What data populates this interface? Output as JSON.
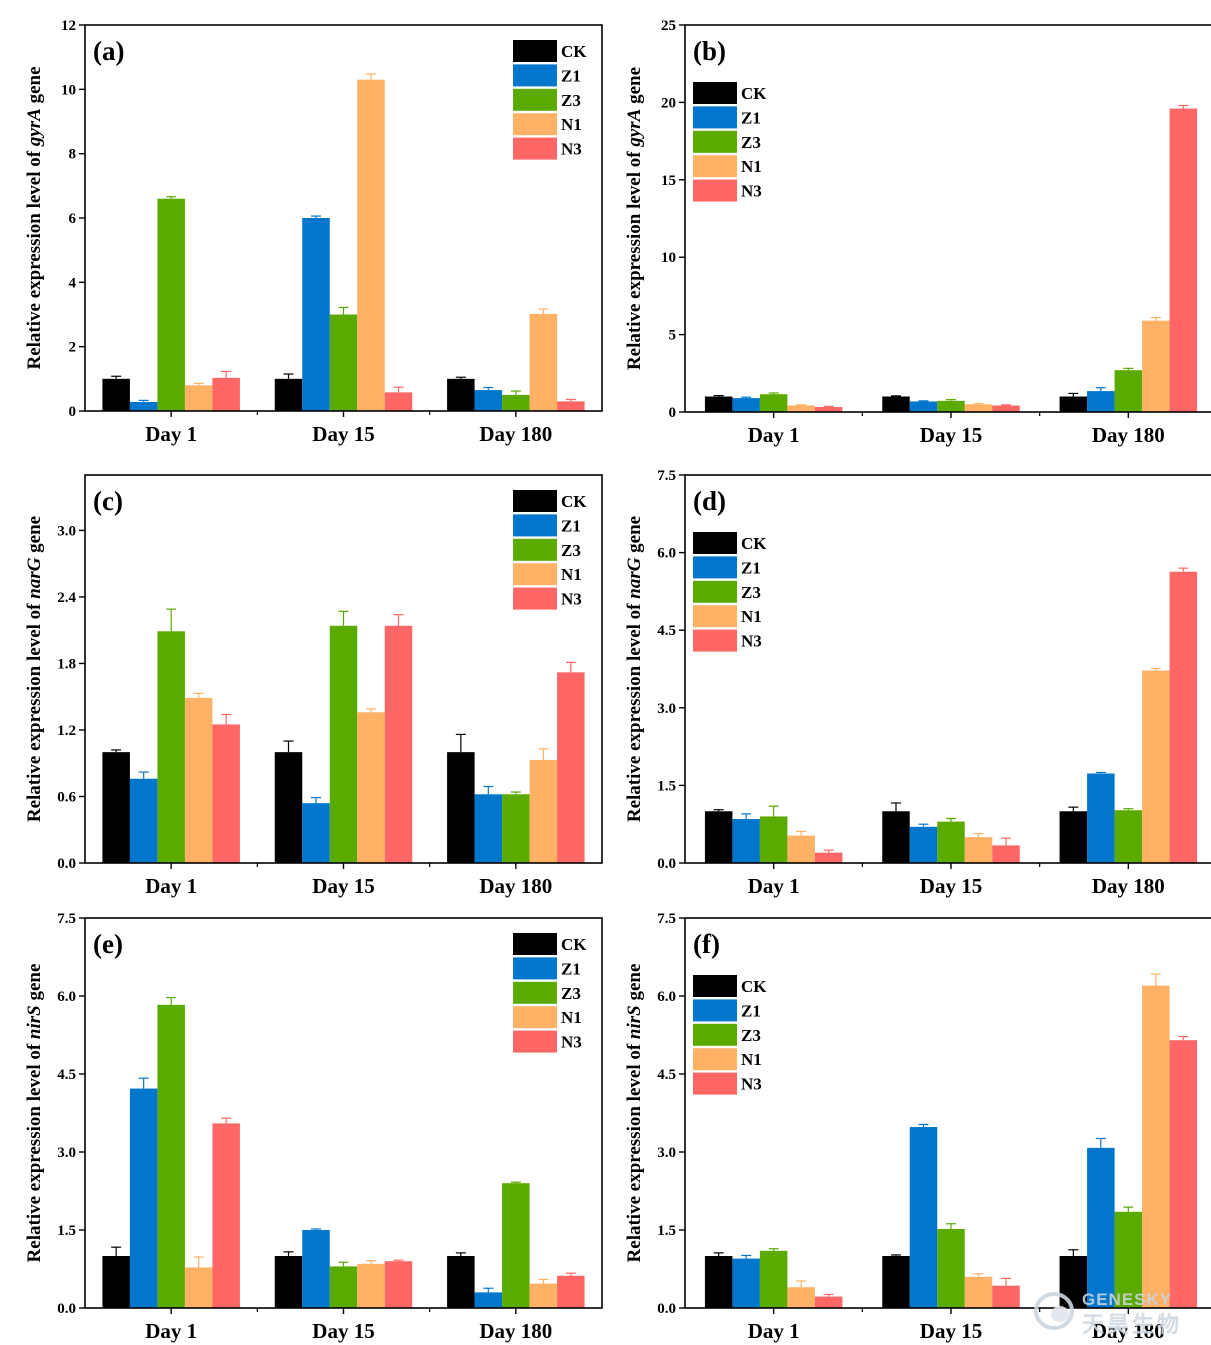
{
  "colors": {
    "CK": "#000000",
    "Z1": "#0077cc",
    "Z3": "#5aaa00",
    "N1": "#ffb266",
    "N3": "#ff6666"
  },
  "watermark": {
    "line1": "GENESKY",
    "line2": "天昊生物"
  },
  "chart_data": [
    {
      "type": "bar",
      "label": "(a)",
      "ylabel_pre": "Relative expression level of ",
      "ylabel_gene": "gyrA",
      "ylabel_post": " gene",
      "categories": [
        "Day 1",
        "Day 15",
        "Day 180"
      ],
      "ylim": [
        0,
        12
      ],
      "yticks": [
        "0",
        "2",
        "4",
        "6",
        "8",
        "10",
        "12"
      ],
      "legend_position": "top-right",
      "series": [
        {
          "name": "CK",
          "values": [
            1.0,
            1.0,
            1.0
          ],
          "errors": [
            0.08,
            0.15,
            0.05
          ]
        },
        {
          "name": "Z1",
          "values": [
            0.28,
            6.0,
            0.65
          ],
          "errors": [
            0.05,
            0.06,
            0.08
          ]
        },
        {
          "name": "Z3",
          "values": [
            6.6,
            3.0,
            0.5
          ],
          "errors": [
            0.06,
            0.22,
            0.12
          ]
        },
        {
          "name": "N1",
          "values": [
            0.8,
            10.3,
            3.02
          ],
          "errors": [
            0.06,
            0.18,
            0.15
          ]
        },
        {
          "name": "N3",
          "values": [
            1.03,
            0.58,
            0.3
          ],
          "errors": [
            0.2,
            0.16,
            0.06
          ]
        }
      ]
    },
    {
      "type": "bar",
      "label": "(b)",
      "ylabel_pre": "Relative expression level of ",
      "ylabel_gene": "gyrA",
      "ylabel_post": " gene",
      "categories": [
        "Day 1",
        "Day 15",
        "Day 180"
      ],
      "ylim": [
        0,
        25
      ],
      "yticks": [
        "0",
        "5",
        "10",
        "15",
        "20",
        "25"
      ],
      "legend_position": "top-left",
      "series": [
        {
          "name": "CK",
          "values": [
            1.0,
            1.0,
            1.0
          ],
          "errors": [
            0.06,
            0.04,
            0.2
          ]
        },
        {
          "name": "Z1",
          "values": [
            0.9,
            0.68,
            1.35
          ],
          "errors": [
            0.06,
            0.04,
            0.22
          ]
        },
        {
          "name": "Z3",
          "values": [
            1.15,
            0.72,
            2.7
          ],
          "errors": [
            0.08,
            0.08,
            0.12
          ]
        },
        {
          "name": "N1",
          "values": [
            0.42,
            0.5,
            5.9
          ],
          "errors": [
            0.04,
            0.04,
            0.2
          ]
        },
        {
          "name": "N3",
          "values": [
            0.32,
            0.42,
            19.6
          ],
          "errors": [
            0.04,
            0.04,
            0.2
          ]
        }
      ]
    },
    {
      "type": "bar",
      "label": "(c)",
      "ylabel_pre": "Relative expression level of ",
      "ylabel_gene": "narG",
      "ylabel_post": " gene",
      "categories": [
        "Day 1",
        "Day 15",
        "Day 180"
      ],
      "ylim": [
        0,
        3.5
      ],
      "yticks": [
        "0.0",
        "0.6",
        "1.2",
        "1.8",
        "2.4",
        "3.0"
      ],
      "legend_position": "top-right",
      "series": [
        {
          "name": "CK",
          "values": [
            1.0,
            1.0,
            1.0
          ],
          "errors": [
            0.02,
            0.1,
            0.16
          ]
        },
        {
          "name": "Z1",
          "values": [
            0.76,
            0.54,
            0.62
          ],
          "errors": [
            0.06,
            0.05,
            0.07
          ]
        },
        {
          "name": "Z3",
          "values": [
            2.09,
            2.14,
            0.62
          ],
          "errors": [
            0.2,
            0.13,
            0.02
          ]
        },
        {
          "name": "N1",
          "values": [
            1.49,
            1.36,
            0.93
          ],
          "errors": [
            0.04,
            0.03,
            0.1
          ]
        },
        {
          "name": "N3",
          "values": [
            1.25,
            2.14,
            1.72
          ],
          "errors": [
            0.09,
            0.1,
            0.09
          ]
        }
      ]
    },
    {
      "type": "bar",
      "label": "(d)",
      "ylabel_pre": "Relative expression level of ",
      "ylabel_gene": "narG",
      "ylabel_post": " gene",
      "categories": [
        "Day 1",
        "Day 15",
        "Day 180"
      ],
      "ylim": [
        0,
        7.5
      ],
      "yticks": [
        "0.0",
        "1.5",
        "3.0",
        "4.5",
        "6.0",
        "7.5"
      ],
      "legend_position": "top-left",
      "series": [
        {
          "name": "CK",
          "values": [
            1.0,
            1.0,
            1.0
          ],
          "errors": [
            0.03,
            0.16,
            0.08
          ]
        },
        {
          "name": "Z1",
          "values": [
            0.85,
            0.7,
            1.73
          ],
          "errors": [
            0.1,
            0.05,
            0.02
          ]
        },
        {
          "name": "Z3",
          "values": [
            0.9,
            0.8,
            1.02
          ],
          "errors": [
            0.2,
            0.06,
            0.03
          ]
        },
        {
          "name": "N1",
          "values": [
            0.53,
            0.5,
            3.72
          ],
          "errors": [
            0.08,
            0.07,
            0.04
          ]
        },
        {
          "name": "N3",
          "values": [
            0.2,
            0.34,
            5.63
          ],
          "errors": [
            0.05,
            0.14,
            0.07
          ]
        }
      ]
    },
    {
      "type": "bar",
      "label": "(e)",
      "ylabel_pre": "Relative expression level of ",
      "ylabel_gene": "nirS",
      "ylabel_post": " gene",
      "categories": [
        "Day 1",
        "Day 15",
        "Day 180"
      ],
      "ylim": [
        0,
        7.5
      ],
      "yticks": [
        "0.0",
        "1.5",
        "3.0",
        "4.5",
        "6.0",
        "7.5"
      ],
      "legend_position": "top-right",
      "series": [
        {
          "name": "CK",
          "values": [
            1.0,
            1.0,
            1.0
          ],
          "errors": [
            0.17,
            0.08,
            0.06
          ]
        },
        {
          "name": "Z1",
          "values": [
            4.22,
            1.5,
            0.3
          ],
          "errors": [
            0.2,
            0.02,
            0.08
          ]
        },
        {
          "name": "Z3",
          "values": [
            5.83,
            0.8,
            2.4
          ],
          "errors": [
            0.14,
            0.08,
            0.02
          ]
        },
        {
          "name": "N1",
          "values": [
            0.78,
            0.85,
            0.47
          ],
          "errors": [
            0.2,
            0.06,
            0.08
          ]
        },
        {
          "name": "N3",
          "values": [
            3.55,
            0.9,
            0.62
          ],
          "errors": [
            0.1,
            0.02,
            0.05
          ]
        }
      ]
    },
    {
      "type": "bar",
      "label": "(f)",
      "ylabel_pre": "Relative expression level of ",
      "ylabel_gene": "nirS",
      "ylabel_post": " gene",
      "categories": [
        "Day 1",
        "Day 15",
        "Day 180"
      ],
      "ylim": [
        0,
        7.5
      ],
      "yticks": [
        "0.0",
        "1.5",
        "3.0",
        "4.5",
        "6.0",
        "7.5"
      ],
      "legend_position": "top-left",
      "series": [
        {
          "name": "CK",
          "values": [
            1.0,
            1.0,
            1.0
          ],
          "errors": [
            0.06,
            0.02,
            0.12
          ]
        },
        {
          "name": "Z1",
          "values": [
            0.95,
            3.48,
            3.08
          ],
          "errors": [
            0.06,
            0.05,
            0.18
          ]
        },
        {
          "name": "Z3",
          "values": [
            1.1,
            1.52,
            1.85
          ],
          "errors": [
            0.04,
            0.1,
            0.09
          ]
        },
        {
          "name": "N1",
          "values": [
            0.4,
            0.6,
            6.2
          ],
          "errors": [
            0.12,
            0.06,
            0.22
          ]
        },
        {
          "name": "N3",
          "values": [
            0.22,
            0.43,
            5.15
          ],
          "errors": [
            0.04,
            0.14,
            0.07
          ]
        }
      ]
    }
  ]
}
